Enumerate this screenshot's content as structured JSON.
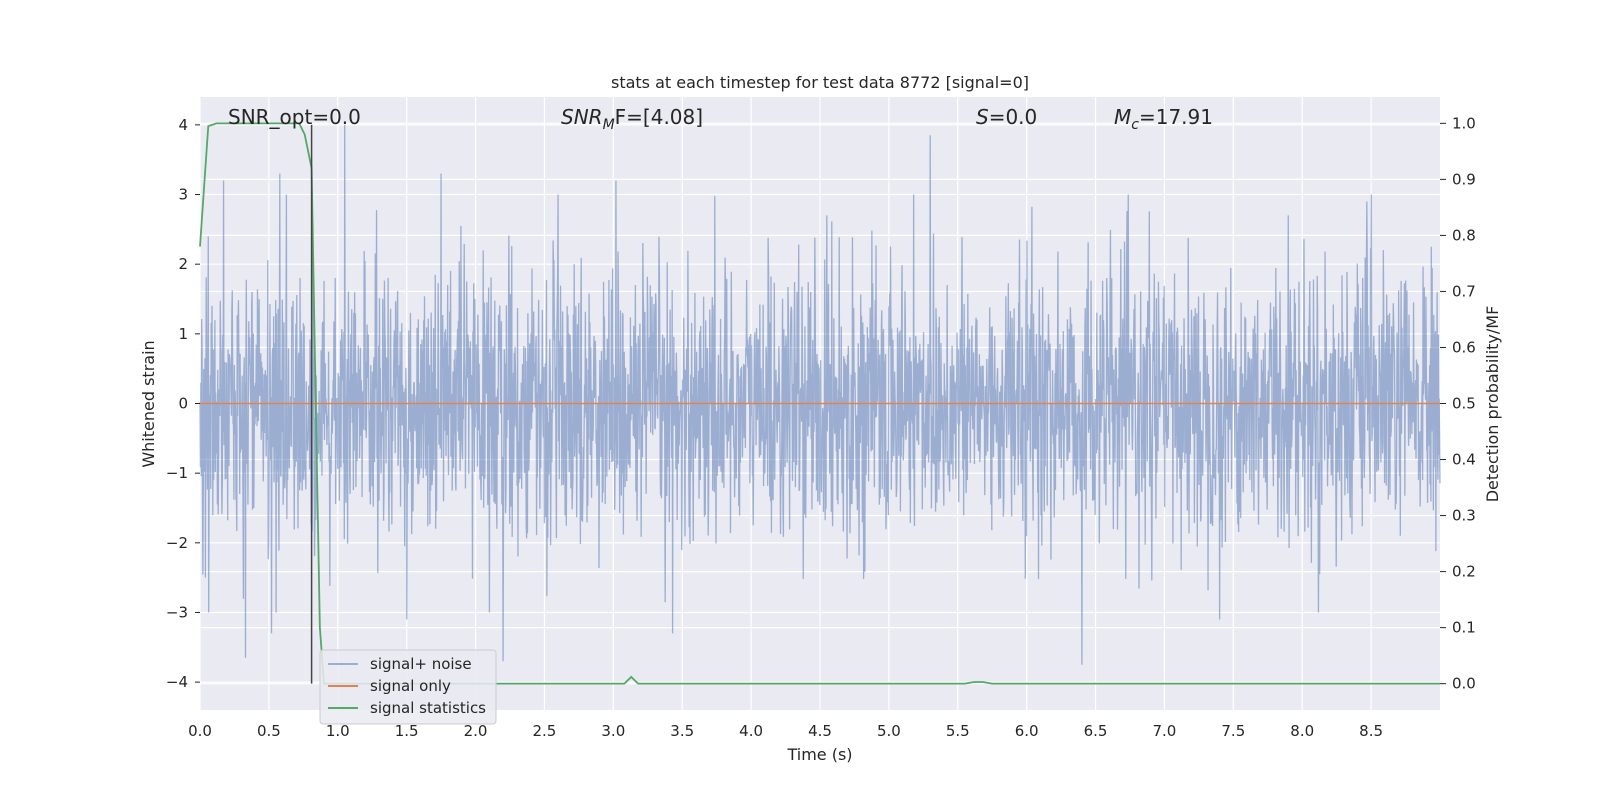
{
  "chart_data": {
    "type": "line",
    "title": "stats at each timestep for test data 8772 [signal=0]",
    "xlabel": "Time (s)",
    "ylabel_left": "Whitened strain",
    "ylabel_right": "Detection probability/MF",
    "xlim": [
      0,
      9.0
    ],
    "ylim_left": [
      -4.4,
      4.4
    ],
    "ylim_right": [
      -0.047,
      1.047
    ],
    "x_ticks": [
      0.0,
      0.5,
      1.0,
      1.5,
      2.0,
      2.5,
      3.0,
      3.5,
      4.0,
      4.5,
      5.0,
      5.5,
      6.0,
      6.5,
      7.0,
      7.5,
      8.0,
      8.5
    ],
    "x_tick_labels": [
      "0.0",
      "0.5",
      "1.0",
      "1.5",
      "2.0",
      "2.5",
      "3.0",
      "3.5",
      "4.0",
      "4.5",
      "5.0",
      "5.5",
      "6.0",
      "6.5",
      "7.0",
      "7.5",
      "8.0",
      "8.5"
    ],
    "y_ticks_left": [
      4,
      3,
      2,
      1,
      0,
      -1,
      -2,
      -3,
      -4
    ],
    "y_tick_labels_left": [
      "4",
      "3",
      "2",
      "1",
      "0",
      "−1",
      "−2",
      "−3",
      "−4"
    ],
    "y_ticks_right": [
      1.0,
      0.9,
      0.8,
      0.7,
      0.6,
      0.5,
      0.4,
      0.3,
      0.2,
      0.1,
      0.0
    ],
    "y_tick_labels_right": [
      "1.0",
      "0.9",
      "0.8",
      "0.7",
      "0.6",
      "0.5",
      "0.4",
      "0.3",
      "0.2",
      "0.1",
      "0.0"
    ],
    "grid": true,
    "vline_x": 0.81,
    "annotations": {
      "snr_opt": "SNR_opt=0.0",
      "snr_mf_label": "SNR",
      "snr_mf_sub": "M",
      "snr_mf_rest": "F=[4.08]",
      "s_label": "S",
      "s_rest": "=0.0",
      "mc_label": "M",
      "mc_sub": "c",
      "mc_rest": "=17.91"
    },
    "legend": {
      "position": "lower-left",
      "entries": [
        "signal+ noise",
        "signal only",
        "signal statistics"
      ]
    },
    "series": [
      {
        "name": "signal+ noise",
        "axis": "left",
        "color": "#4c72b0",
        "kind": "noise",
        "sample_count": 3000,
        "std": 0.95,
        "peaks": [
          {
            "x": 0.06,
            "y": 2.4
          },
          {
            "x": 0.17,
            "y": 3.2
          },
          {
            "x": 0.33,
            "y": -3.65
          },
          {
            "x": 0.52,
            "y": -3.3
          },
          {
            "x": 0.58,
            "y": 3.3
          },
          {
            "x": 0.82,
            "y": 2.6
          },
          {
            "x": 1.05,
            "y": 4.0
          },
          {
            "x": 1.5,
            "y": -3.1
          },
          {
            "x": 1.75,
            "y": 3.3
          },
          {
            "x": 2.2,
            "y": -3.7
          },
          {
            "x": 3.02,
            "y": 3.2
          },
          {
            "x": 3.43,
            "y": -3.3
          },
          {
            "x": 5.3,
            "y": 3.85
          },
          {
            "x": 5.18,
            "y": 3.0
          },
          {
            "x": 6.4,
            "y": -3.75
          },
          {
            "x": 8.47,
            "y": 2.9
          },
          {
            "x": 7.9,
            "y": 2.7
          },
          {
            "x": 7.4,
            "y": -3.1
          },
          {
            "x": 0.04,
            "y": -2.5
          },
          {
            "x": 2.6,
            "y": 3.0
          }
        ]
      },
      {
        "name": "signal only",
        "axis": "left",
        "color": "#dd8452",
        "x": [
          0.0,
          9.0
        ],
        "y": [
          0.0,
          0.0
        ]
      },
      {
        "name": "signal statistics",
        "axis": "right",
        "color": "#55a868",
        "x": [
          0.0,
          0.06,
          0.12,
          0.2,
          0.5,
          0.72,
          0.76,
          0.81,
          0.84,
          0.87,
          0.9,
          0.95,
          3.08,
          3.13,
          3.18,
          5.55,
          5.62,
          5.68,
          5.75,
          9.0
        ],
        "y": [
          0.78,
          0.995,
          1.0,
          1.0,
          1.0,
          1.0,
          0.98,
          0.92,
          0.5,
          0.1,
          0.0,
          0.0,
          0.0,
          0.012,
          0.0,
          0.0,
          0.003,
          0.003,
          0.0,
          0.0
        ]
      }
    ]
  }
}
